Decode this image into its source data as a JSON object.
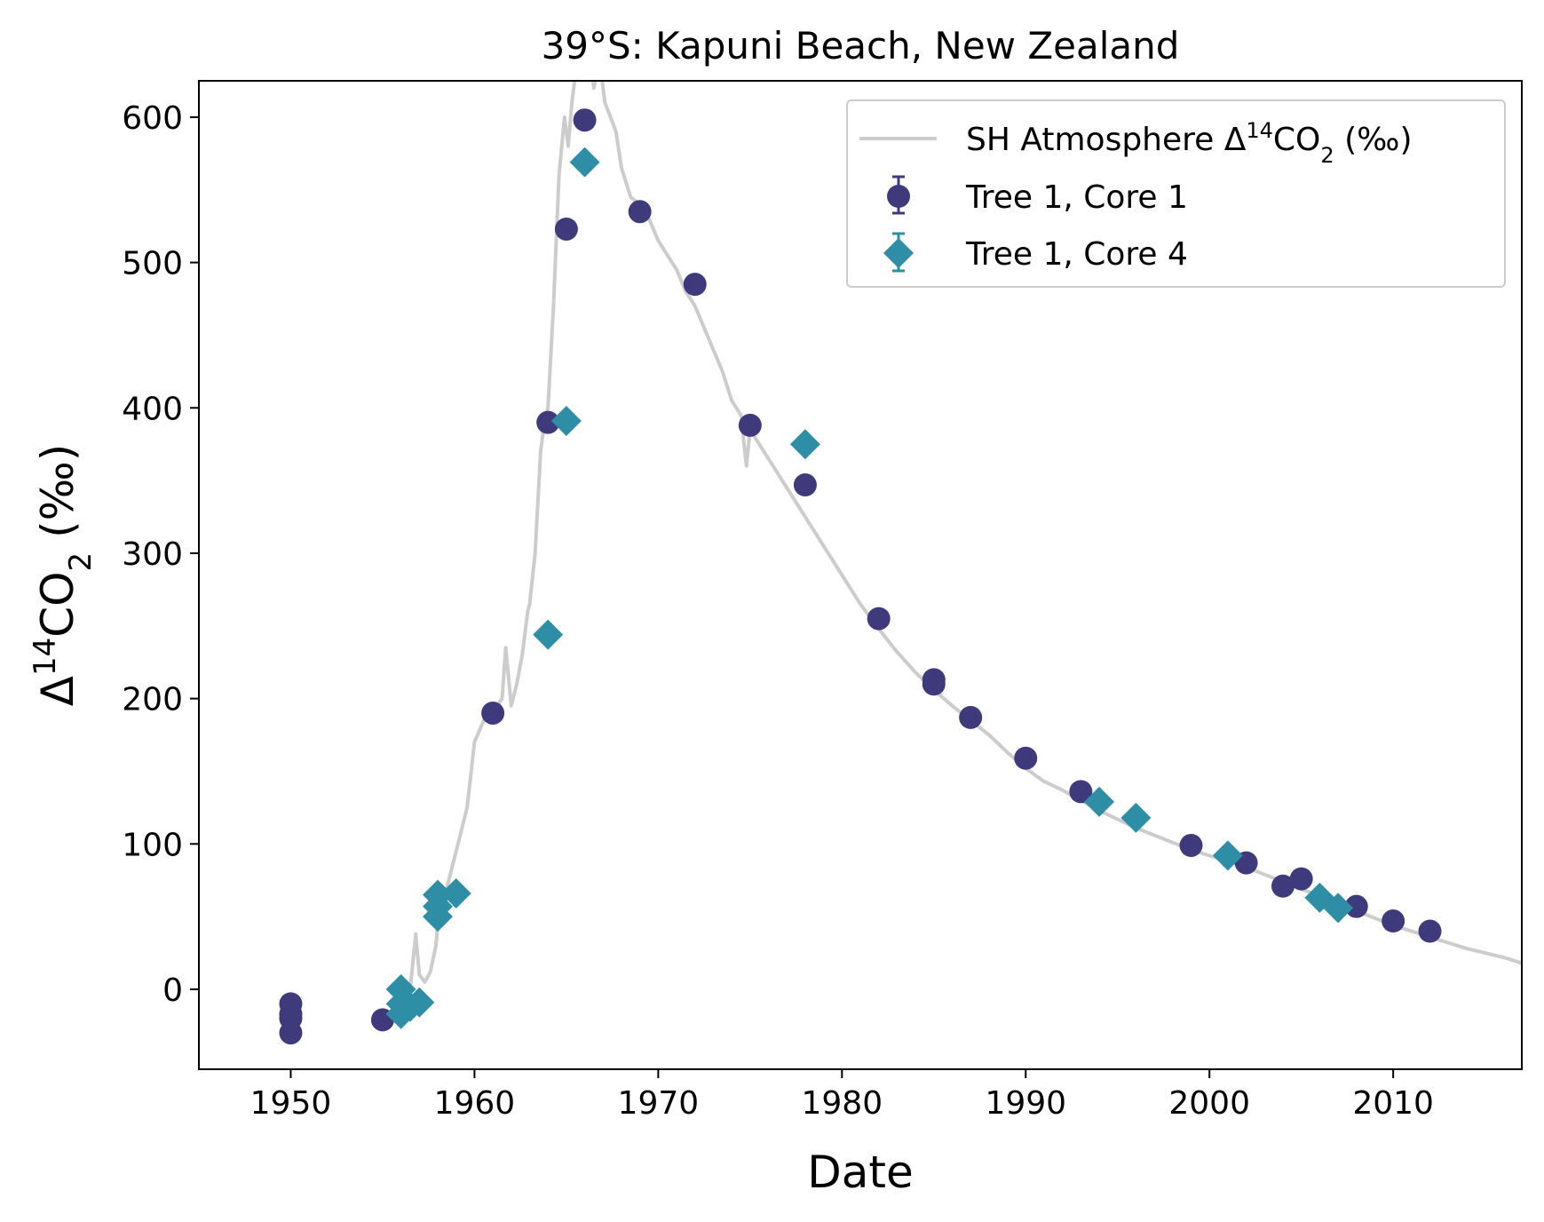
{
  "chart_data": {
    "type": "scatter",
    "title": "39°S: Kapuni Beach, New Zealand",
    "xlabel": "Date",
    "ylabel": {
      "prefix": "Δ",
      "sup": "14",
      "mid": "CO",
      "sub": "2",
      "suffix": " (‰)"
    },
    "xlim": [
      1945,
      2017
    ],
    "ylim": [
      -55,
      625
    ],
    "xticks": [
      1950,
      1960,
      1970,
      1980,
      1990,
      2000,
      2010
    ],
    "yticks": [
      0,
      100,
      200,
      300,
      400,
      500,
      600
    ],
    "grid": false,
    "legend_position": "top-right",
    "colors": {
      "atmosphere": "#cccccc",
      "core1": "#3f3a7c",
      "core4": "#2e8ea6"
    },
    "series": [
      {
        "name": {
          "prefix": "SH Atmosphere Δ",
          "sup": "14",
          "mid": "CO",
          "sub": "2",
          "suffix": " (‰)"
        },
        "kind": "line",
        "x": [
          1955.0,
          1955.5,
          1956.0,
          1956.5,
          1956.8,
          1957.0,
          1957.3,
          1957.6,
          1957.9,
          1958.0,
          1958.4,
          1958.8,
          1959.2,
          1959.6,
          1960.0,
          1960.5,
          1961.0,
          1961.5,
          1961.7,
          1962.0,
          1962.3,
          1962.6,
          1962.9,
          1963.0,
          1963.3,
          1963.6,
          1963.8,
          1964.0,
          1964.3,
          1964.6,
          1964.9,
          1965.1,
          1965.3,
          1965.6,
          1965.9,
          1966.2,
          1966.5,
          1966.8,
          1967.1,
          1967.4,
          1967.7,
          1968.0,
          1968.5,
          1969.0,
          1969.5,
          1970.0,
          1970.5,
          1971.0,
          1971.5,
          1972.0,
          1972.5,
          1973.0,
          1973.5,
          1974.0,
          1974.5,
          1974.8,
          1975.0,
          1975.5,
          1976.0,
          1976.5,
          1977.0,
          1977.5,
          1978.0,
          1978.5,
          1979.0,
          1979.5,
          1980.0,
          1981.0,
          1982.0,
          1983.0,
          1984.0,
          1985.0,
          1986.0,
          1987.0,
          1988.0,
          1989.0,
          1990.0,
          1991.0,
          1992.0,
          1993.0,
          1994.0,
          1995.0,
          1996.0,
          1997.0,
          1998.0,
          1999.0,
          2000.0,
          2001.0,
          2002.0,
          2003.0,
          2004.0,
          2005.0,
          2006.0,
          2007.0,
          2008.0,
          2009.0,
          2010.0,
          2011.0,
          2012.0,
          2013.0,
          2014.0,
          2015.0,
          2016.0,
          2017.0
        ],
        "y": [
          -20,
          -15,
          -8,
          0,
          38,
          10,
          5,
          12,
          30,
          45,
          65,
          85,
          105,
          125,
          170,
          185,
          190,
          200,
          235,
          195,
          210,
          230,
          260,
          265,
          300,
          370,
          390,
          400,
          470,
          560,
          600,
          580,
          610,
          640,
          660,
          650,
          620,
          640,
          610,
          600,
          590,
          565,
          545,
          540,
          530,
          515,
          505,
          495,
          480,
          470,
          455,
          440,
          425,
          405,
          395,
          360,
          385,
          375,
          365,
          355,
          345,
          335,
          325,
          315,
          305,
          295,
          285,
          265,
          248,
          232,
          218,
          206,
          195,
          185,
          175,
          163,
          152,
          143,
          137,
          130,
          123,
          117,
          111,
          106,
          101,
          96,
          92,
          88,
          84,
          79,
          74,
          69,
          64,
          59,
          54,
          49,
          44,
          40,
          36,
          32,
          28,
          25,
          22,
          18
        ]
      },
      {
        "name": "Tree 1, Core 1",
        "kind": "points",
        "marker": "circle",
        "x": [
          1950.0,
          1950.0,
          1950.0,
          1950.0,
          1955.0,
          1961.0,
          1964.0,
          1965.0,
          1966.0,
          1969.0,
          1972.0,
          1975.0,
          1978.0,
          1982.0,
          1985.0,
          1985.0,
          1987.0,
          1990.0,
          1993.0,
          1999.0,
          2002.0,
          2004.0,
          2005.0,
          2008.0,
          2010.0,
          2012.0
        ],
        "y": [
          -10,
          -17,
          -20,
          -30,
          -21,
          190,
          390,
          523,
          598,
          535,
          485,
          388,
          347,
          255,
          213,
          210,
          187,
          159,
          136,
          99,
          87,
          71,
          76,
          57,
          47,
          40
        ]
      },
      {
        "name": "Tree 1, Core 4",
        "kind": "points",
        "marker": "diamond",
        "x": [
          1956.0,
          1956.0,
          1956.0,
          1956.5,
          1957.0,
          1958.0,
          1958.0,
          1958.0,
          1959.0,
          1964.0,
          1965.0,
          1966.0,
          1978.0,
          1994.0,
          1996.0,
          2001.0,
          2006.0,
          2007.0
        ],
        "y": [
          0,
          -10,
          -17,
          -12,
          -9,
          65,
          57,
          50,
          66,
          244,
          391,
          569,
          375,
          129,
          118,
          92,
          63,
          56
        ]
      }
    ]
  }
}
